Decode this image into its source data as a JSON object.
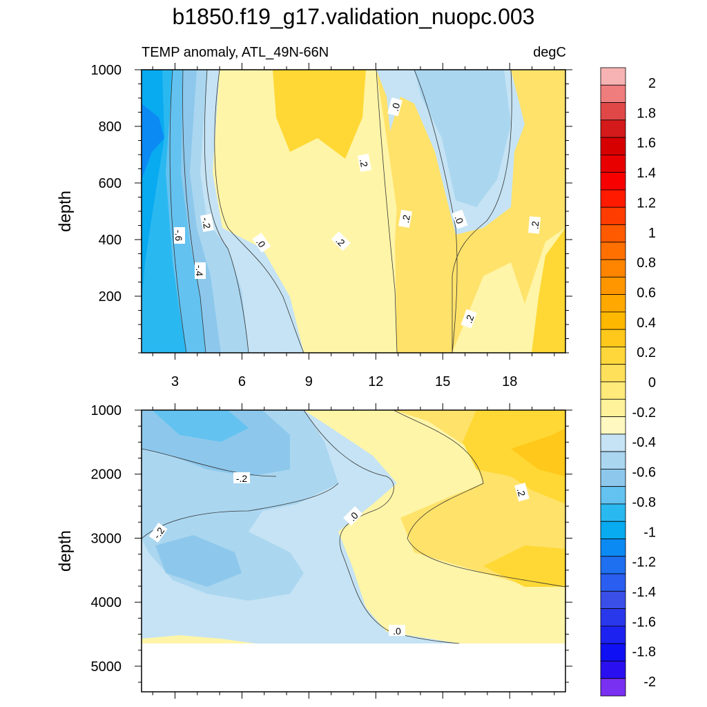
{
  "title": "b1850.f19_g17.validation_nuopc.003",
  "subtitle_left": "TEMP anomaly, ATL_49N-66N",
  "subtitle_right": "degC",
  "chart_data": {
    "type": "heatmap",
    "panels": [
      {
        "name": "upper",
        "ylabel": "depth",
        "ylim": [
          1000,
          0
        ],
        "y_ticks": [
          "200",
          "400",
          "600",
          "800",
          "1000"
        ],
        "x_ticks": [
          "3",
          "6",
          "9",
          "12",
          "15",
          "18"
        ],
        "xlim": [
          1.5,
          20.5
        ],
        "contour_labels": [
          "-.6",
          "-.4",
          "-.2",
          ".0",
          ".0",
          ".0",
          ".2",
          ".2",
          ".2",
          ".2",
          ".2"
        ]
      },
      {
        "name": "lower",
        "ylabel": "depth",
        "ylim": [
          1000,
          5400
        ],
        "y_ticks": [
          "1000",
          "2000",
          "3000",
          "4000",
          "5000"
        ],
        "xlim": [
          1.5,
          20.5
        ],
        "contour_labels": [
          "-.2",
          "-.2",
          ".0",
          ".0",
          ".2"
        ]
      }
    ],
    "colorbar": {
      "labels": [
        "2",
        "1.8",
        "1.6",
        "1.4",
        "1.2",
        "1",
        "0.8",
        "0.6",
        "0.4",
        "0.2",
        "0",
        "-0.2",
        "-0.4",
        "-0.6",
        "-0.8",
        "-1",
        "-1.2",
        "-1.4",
        "-1.6",
        "-1.8",
        "-2"
      ],
      "colors": [
        "#f7b3b3",
        "#ef7d7d",
        "#e04848",
        "#d41a1a",
        "#d60000",
        "#e80000",
        "#f80000",
        "#ff1a00",
        "#ff3c00",
        "#ff5a00",
        "#ff7000",
        "#ff8400",
        "#ff9600",
        "#ffa800",
        "#ffb800",
        "#ffc81a",
        "#ffd73a",
        "#ffe05a",
        "#ffea7a",
        "#fff29a",
        "#fff8c0",
        "#c5e3f4",
        "#aad6f0",
        "#8dc8ec",
        "#63c2f0",
        "#2ab8f0",
        "#08aaf0",
        "#0c8af4",
        "#1f70f0",
        "#2a5ef0",
        "#3a4ee8",
        "#2a38ec",
        "#1c22f0",
        "#1010f4",
        "#2a10f0",
        "#7a30f0"
      ]
    }
  }
}
